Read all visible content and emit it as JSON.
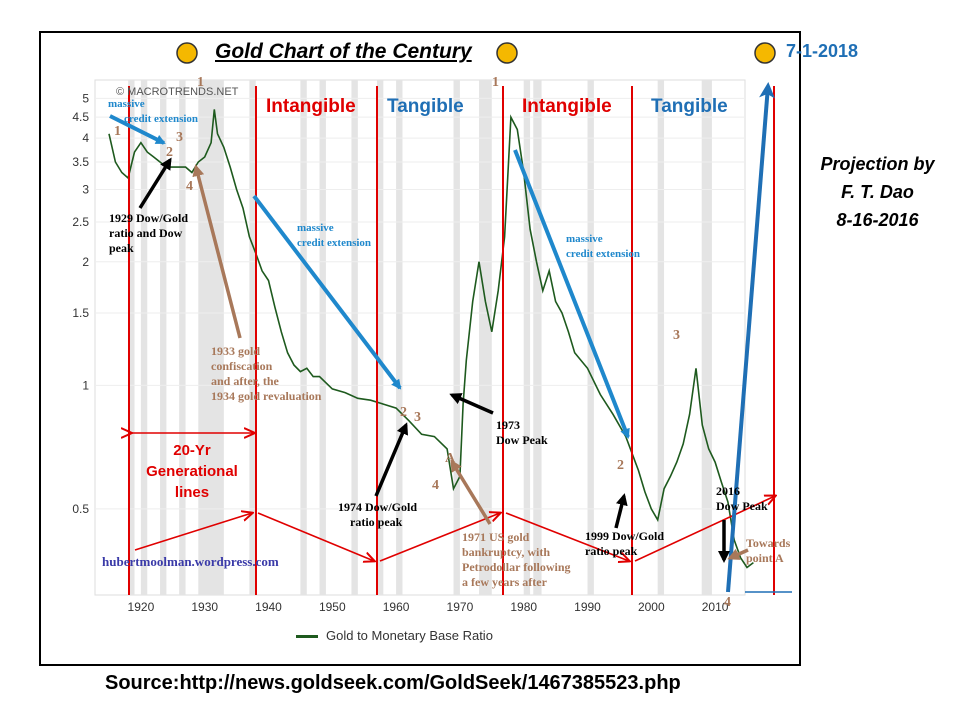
{
  "title": "Gold Chart of the Century",
  "date_label": "7-1-2018",
  "projection": [
    "Projection by",
    "F. T. Dao",
    "8-16-2016"
  ],
  "source": "Source:http://news.goldseek.com/GoldSeek/1467385523.php",
  "watermark": "© MACROTRENDS.NET",
  "website": "hubertmoolman.wordpress.com",
  "eras": [
    {
      "label": "Intangible",
      "color": "#e00000"
    },
    {
      "label": "Tangible",
      "color": "#1f6fb5"
    },
    {
      "label": "Intangible",
      "color": "#e00000"
    },
    {
      "label": "Tangible",
      "color": "#1f6fb5"
    }
  ],
  "generational": [
    "20-Yr",
    "Generational",
    "lines"
  ],
  "annotations": {
    "massive1": [
      "massive",
      "credit extension"
    ],
    "massive2": [
      "massive",
      "credit extension"
    ],
    "massive3": [
      "massive",
      "credit extension"
    ],
    "dow1929": [
      "1929 Dow/Gold",
      "ratio and Dow",
      "peak"
    ],
    "gold1933": [
      "1933 gold",
      "confiscation",
      "and after, the",
      "1934 gold revaluation"
    ],
    "dow1973": [
      "1973",
      "Dow Peak"
    ],
    "dow1974": [
      "1974 Dow/Gold",
      "ratio peak"
    ],
    "us1971": [
      "1971 US gold",
      "bankruptcy, with",
      "Petrodollar following",
      "a few years after"
    ],
    "dow1999": [
      "1999 Dow/Gold",
      "ratio peak"
    ],
    "dow2016": [
      "2016",
      "Dow Peak"
    ],
    "towards": [
      "Towards",
      "point A"
    ]
  },
  "colors": {
    "line": "#1e5a1e",
    "red": "#e00000",
    "blue": "#1f88cc",
    "darkblue": "#1f6fb5",
    "tan": "#a8785a",
    "sun": "#f5b800"
  },
  "chart_data": {
    "type": "line",
    "legend": "Gold to Monetary Base Ratio",
    "legend_position": "bottom",
    "y_scale": "log",
    "xlim": [
      1915,
      2016
    ],
    "ylim": [
      0.33,
      5.3
    ],
    "x_ticks": [
      1920,
      1930,
      1940,
      1950,
      1960,
      1970,
      1980,
      1990,
      2000,
      2010
    ],
    "y_ticks": [
      0.5,
      1,
      1.5,
      2,
      2.5,
      3,
      3.5,
      4,
      4.5,
      5
    ],
    "series": [
      {
        "name": "Gold to Monetary Base Ratio",
        "x": [
          1915,
          1916,
          1917,
          1918,
          1919,
          1920,
          1921,
          1922,
          1923,
          1924,
          1925,
          1926,
          1927,
          1928,
          1929,
          1930,
          1931,
          1931.5,
          1932,
          1933,
          1934,
          1935,
          1936,
          1937,
          1938,
          1939,
          1940,
          1941,
          1942,
          1943,
          1944,
          1945,
          1946,
          1947,
          1948,
          1950,
          1952,
          1954,
          1956,
          1958,
          1960,
          1962,
          1964,
          1966,
          1968,
          1969,
          1970,
          1970.5,
          1971,
          1972,
          1973,
          1974,
          1975,
          1976,
          1977,
          1978,
          1979,
          1980,
          1981,
          1982,
          1983,
          1984,
          1985,
          1986,
          1987,
          1988,
          1990,
          1992,
          1994,
          1996,
          1998,
          1999,
          2000,
          2001,
          2002,
          2003,
          2004,
          2005,
          2006,
          2007,
          2008,
          2009,
          2010,
          2011,
          2012,
          2013,
          2014,
          2015,
          2016
        ],
        "values": [
          4.1,
          3.5,
          3.3,
          3.2,
          3.7,
          3.9,
          3.7,
          3.6,
          3.5,
          3.4,
          3.4,
          3.4,
          3.4,
          3.3,
          3.5,
          3.6,
          3.9,
          4.7,
          4.1,
          3.8,
          3.4,
          3.0,
          2.7,
          2.3,
          2.1,
          1.9,
          1.8,
          1.55,
          1.35,
          1.2,
          1.12,
          1.08,
          1.1,
          1.05,
          1.05,
          0.98,
          0.96,
          0.93,
          0.92,
          0.9,
          0.88,
          0.82,
          0.76,
          0.75,
          0.7,
          0.56,
          0.6,
          0.9,
          1.15,
          1.6,
          2.0,
          1.6,
          1.35,
          1.7,
          2.3,
          4.5,
          4.2,
          3.3,
          2.4,
          2.0,
          1.7,
          1.9,
          1.6,
          1.5,
          1.35,
          1.2,
          1.1,
          0.95,
          0.85,
          0.75,
          0.62,
          0.55,
          0.5,
          0.47,
          0.56,
          0.6,
          0.65,
          0.72,
          0.85,
          1.1,
          0.8,
          0.7,
          0.65,
          0.58,
          0.52,
          0.42,
          0.38,
          0.36,
          0.37
        ]
      }
    ]
  }
}
